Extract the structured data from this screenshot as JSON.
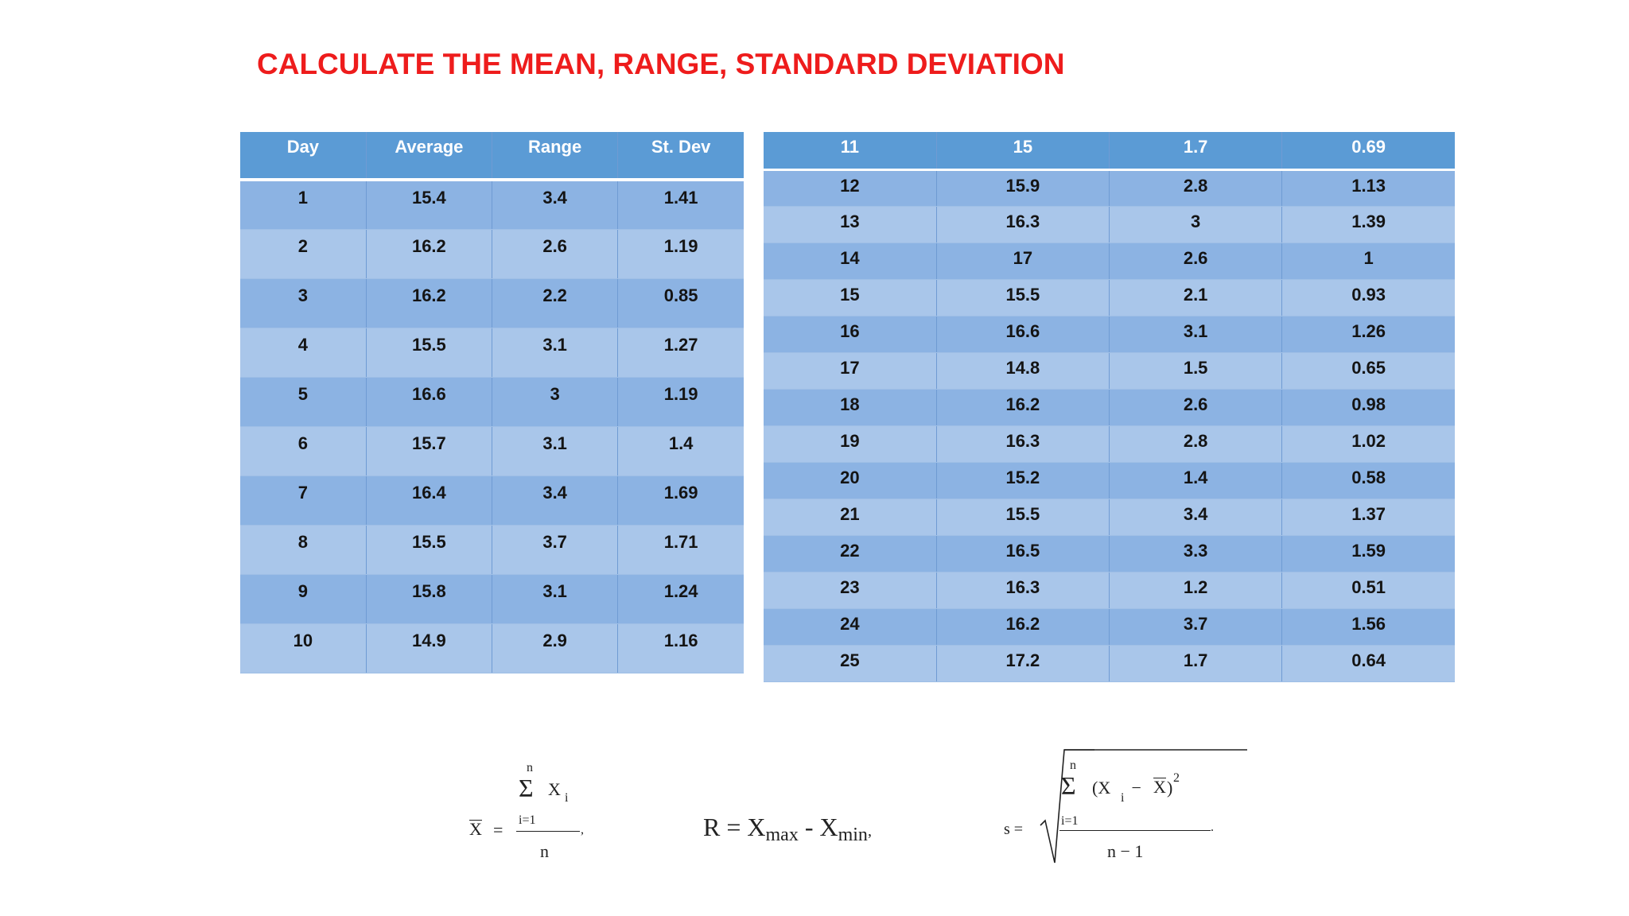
{
  "title": "CALCULATE THE MEAN, RANGE, STANDARD DEVIATION",
  "left_table": {
    "headers": [
      "Day",
      "Average",
      "Range",
      "St. Dev"
    ],
    "rows": [
      [
        "1",
        "15.4",
        "3.4",
        "1.41"
      ],
      [
        "2",
        "16.2",
        "2.6",
        "1.19"
      ],
      [
        "3",
        "16.2",
        "2.2",
        "0.85"
      ],
      [
        "4",
        "15.5",
        "3.1",
        "1.27"
      ],
      [
        "5",
        "16.6",
        "3",
        "1.19"
      ],
      [
        "6",
        "15.7",
        "3.1",
        "1.4"
      ],
      [
        "7",
        "16.4",
        "3.4",
        "1.69"
      ],
      [
        "8",
        "15.5",
        "3.7",
        "1.71"
      ],
      [
        "9",
        "15.8",
        "3.1",
        "1.24"
      ],
      [
        "10",
        "14.9",
        "2.9",
        "1.16"
      ]
    ]
  },
  "right_table": {
    "headers": [
      "11",
      "15",
      "1.7",
      "0.69"
    ],
    "rows": [
      [
        "12",
        "15.9",
        "2.8",
        "1.13"
      ],
      [
        "13",
        "16.3",
        "3",
        "1.39"
      ],
      [
        "14",
        "17",
        "2.6",
        "1"
      ],
      [
        "15",
        "15.5",
        "2.1",
        "0.93"
      ],
      [
        "16",
        "16.6",
        "3.1",
        "1.26"
      ],
      [
        "17",
        "14.8",
        "1.5",
        "0.65"
      ],
      [
        "18",
        "16.2",
        "2.6",
        "0.98"
      ],
      [
        "19",
        "16.3",
        "2.8",
        "1.02"
      ],
      [
        "20",
        "15.2",
        "1.4",
        "0.58"
      ],
      [
        "21",
        "15.5",
        "3.4",
        "1.37"
      ],
      [
        "22",
        "16.5",
        "3.3",
        "1.59"
      ],
      [
        "23",
        "16.3",
        "1.2",
        "0.51"
      ],
      [
        "24",
        "16.2",
        "3.7",
        "1.56"
      ],
      [
        "25",
        "17.2",
        "1.7",
        "0.64"
      ]
    ]
  },
  "formulas": {
    "mean": {
      "lhs": "X",
      "eq": "=",
      "upper": "n",
      "sigma": "Σ",
      "term": "X",
      "term_sub": "i",
      "lower": "i=1",
      "denominator": "n",
      "trail": ","
    },
    "range": {
      "R": "R = X",
      "max": "max",
      "minus": " - X",
      "min": "min",
      "trail": ","
    },
    "std": {
      "lhs": "s =",
      "upper": "n",
      "sigma": "Σ",
      "open": "(X",
      "term_sub": "i",
      "minus": " − ",
      "xbar": "X",
      "close": ")",
      "power": "2",
      "lower": "i=1",
      "denominator": "n − 1",
      "trail": "."
    }
  }
}
